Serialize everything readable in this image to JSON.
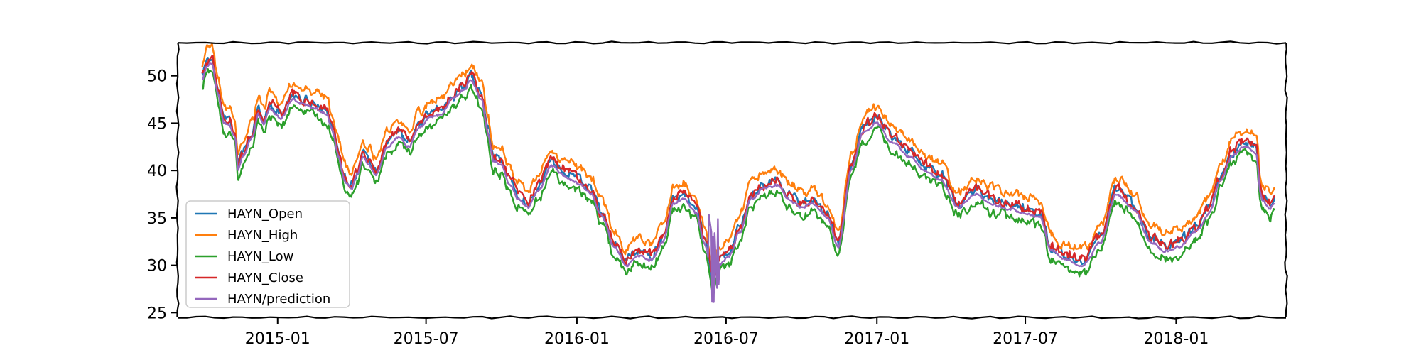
{
  "chart_data": {
    "type": "line",
    "title": "",
    "xlabel": "",
    "ylabel": "",
    "xlim": [
      "2014-09-01",
      "2018-05-15"
    ],
    "ylim": [
      24.5,
      53.5
    ],
    "grid": false,
    "legend_position": "lower-left",
    "xtick_labels": [
      "2015-01",
      "2015-07",
      "2016-01",
      "2016-07",
      "2017-01",
      "2017-07",
      "2018-01"
    ],
    "ytick_labels": [
      25,
      30,
      35,
      40,
      45,
      50
    ],
    "anchors": [
      [
        "2014-10-01",
        49.5
      ],
      [
        "2014-10-06",
        51.0
      ],
      [
        "2014-10-13",
        51.3
      ],
      [
        "2014-10-20",
        48.0
      ],
      [
        "2014-10-27",
        45.0
      ],
      [
        "2014-11-03",
        44.8
      ],
      [
        "2014-11-10",
        43.5
      ],
      [
        "2014-11-14",
        40.0
      ],
      [
        "2014-11-20",
        41.5
      ],
      [
        "2014-12-01",
        43.5
      ],
      [
        "2014-12-08",
        46.0
      ],
      [
        "2014-12-15",
        45.0
      ],
      [
        "2014-12-22",
        46.5
      ],
      [
        "2015-01-05",
        45.5
      ],
      [
        "2015-01-19",
        47.5
      ],
      [
        "2015-02-02",
        47.0
      ],
      [
        "2015-02-16",
        46.5
      ],
      [
        "2015-03-02",
        46.0
      ],
      [
        "2015-03-09",
        44.0
      ],
      [
        "2015-03-16",
        41.5
      ],
      [
        "2015-03-23",
        39.0
      ],
      [
        "2015-04-01",
        38.0
      ],
      [
        "2015-04-08",
        39.5
      ],
      [
        "2015-04-15",
        41.5
      ],
      [
        "2015-04-22",
        40.5
      ],
      [
        "2015-05-01",
        39.5
      ],
      [
        "2015-05-15",
        42.5
      ],
      [
        "2015-05-28",
        43.5
      ],
      [
        "2015-06-10",
        42.5
      ],
      [
        "2015-06-22",
        44.5
      ],
      [
        "2015-07-06",
        45.5
      ],
      [
        "2015-07-20",
        46.0
      ],
      [
        "2015-08-03",
        47.5
      ],
      [
        "2015-08-17",
        48.5
      ],
      [
        "2015-08-24",
        49.5
      ],
      [
        "2015-09-07",
        47.5
      ],
      [
        "2015-09-14",
        44.0
      ],
      [
        "2015-09-21",
        41.0
      ],
      [
        "2015-10-01",
        40.5
      ],
      [
        "2015-10-12",
        38.5
      ],
      [
        "2015-10-22",
        37.0
      ],
      [
        "2015-11-02",
        36.0
      ],
      [
        "2015-11-16",
        38.0
      ],
      [
        "2015-12-01",
        40.5
      ],
      [
        "2015-12-15",
        39.5
      ],
      [
        "2016-01-05",
        38.5
      ],
      [
        "2016-01-18",
        37.5
      ],
      [
        "2016-02-01",
        35.0
      ],
      [
        "2016-02-15",
        32.0
      ],
      [
        "2016-03-01",
        30.0
      ],
      [
        "2016-03-15",
        31.0
      ],
      [
        "2016-04-01",
        30.5
      ],
      [
        "2016-04-15",
        32.5
      ],
      [
        "2016-04-28",
        36.5
      ],
      [
        "2016-05-10",
        37.0
      ],
      [
        "2016-05-25",
        35.5
      ],
      [
        "2016-06-06",
        32.0
      ],
      [
        "2016-06-15",
        28.0
      ],
      [
        "2016-06-22",
        30.0
      ],
      [
        "2016-07-05",
        31.0
      ],
      [
        "2016-07-18",
        33.5
      ],
      [
        "2016-08-01",
        37.0
      ],
      [
        "2016-08-15",
        38.0
      ],
      [
        "2016-09-01",
        38.5
      ],
      [
        "2016-09-15",
        37.0
      ],
      [
        "2016-10-01",
        36.0
      ],
      [
        "2016-10-15",
        36.5
      ],
      [
        "2016-11-01",
        35.0
      ],
      [
        "2016-11-15",
        32.0
      ],
      [
        "2016-12-01",
        40.0
      ],
      [
        "2016-12-15",
        44.0
      ],
      [
        "2017-01-01",
        45.0
      ],
      [
        "2017-01-20",
        43.0
      ],
      [
        "2017-02-10",
        41.5
      ],
      [
        "2017-03-01",
        40.0
      ],
      [
        "2017-03-20",
        39.0
      ],
      [
        "2017-04-10",
        36.0
      ],
      [
        "2017-05-01",
        37.5
      ],
      [
        "2017-05-20",
        36.5
      ],
      [
        "2017-06-10",
        36.0
      ],
      [
        "2017-07-01",
        35.5
      ],
      [
        "2017-07-20",
        35.0
      ],
      [
        "2017-08-01",
        31.5
      ],
      [
        "2017-08-20",
        30.5
      ],
      [
        "2017-09-10",
        30.0
      ],
      [
        "2017-10-01",
        32.5
      ],
      [
        "2017-10-20",
        37.5
      ],
      [
        "2017-11-10",
        36.0
      ],
      [
        "2017-12-01",
        32.5
      ],
      [
        "2017-12-20",
        31.5
      ],
      [
        "2018-01-05",
        32.0
      ],
      [
        "2018-01-25",
        33.5
      ],
      [
        "2018-02-10",
        35.5
      ],
      [
        "2018-02-25",
        39.0
      ],
      [
        "2018-03-10",
        41.5
      ],
      [
        "2018-03-25",
        42.5
      ],
      [
        "2018-04-08",
        42.0
      ],
      [
        "2018-04-15",
        37.0
      ],
      [
        "2018-04-25",
        36.0
      ],
      [
        "2018-05-01",
        36.5
      ]
    ],
    "series": [
      {
        "name": "HAYN_Open",
        "color": "#1f77b4",
        "offset": 0.5,
        "noise": 0.9
      },
      {
        "name": "HAYN_High",
        "color": "#ff7f0e",
        "offset": 1.7,
        "noise": 0.9
      },
      {
        "name": "HAYN_Low",
        "color": "#2ca02c",
        "offset": -0.8,
        "noise": 0.9
      },
      {
        "name": "HAYN_Close",
        "color": "#d62728",
        "offset": 0.6,
        "noise": 1.0
      },
      {
        "name": "HAYN/prediction",
        "color": "#9467bd",
        "offset": 0.0,
        "noise": 0.3
      }
    ]
  }
}
